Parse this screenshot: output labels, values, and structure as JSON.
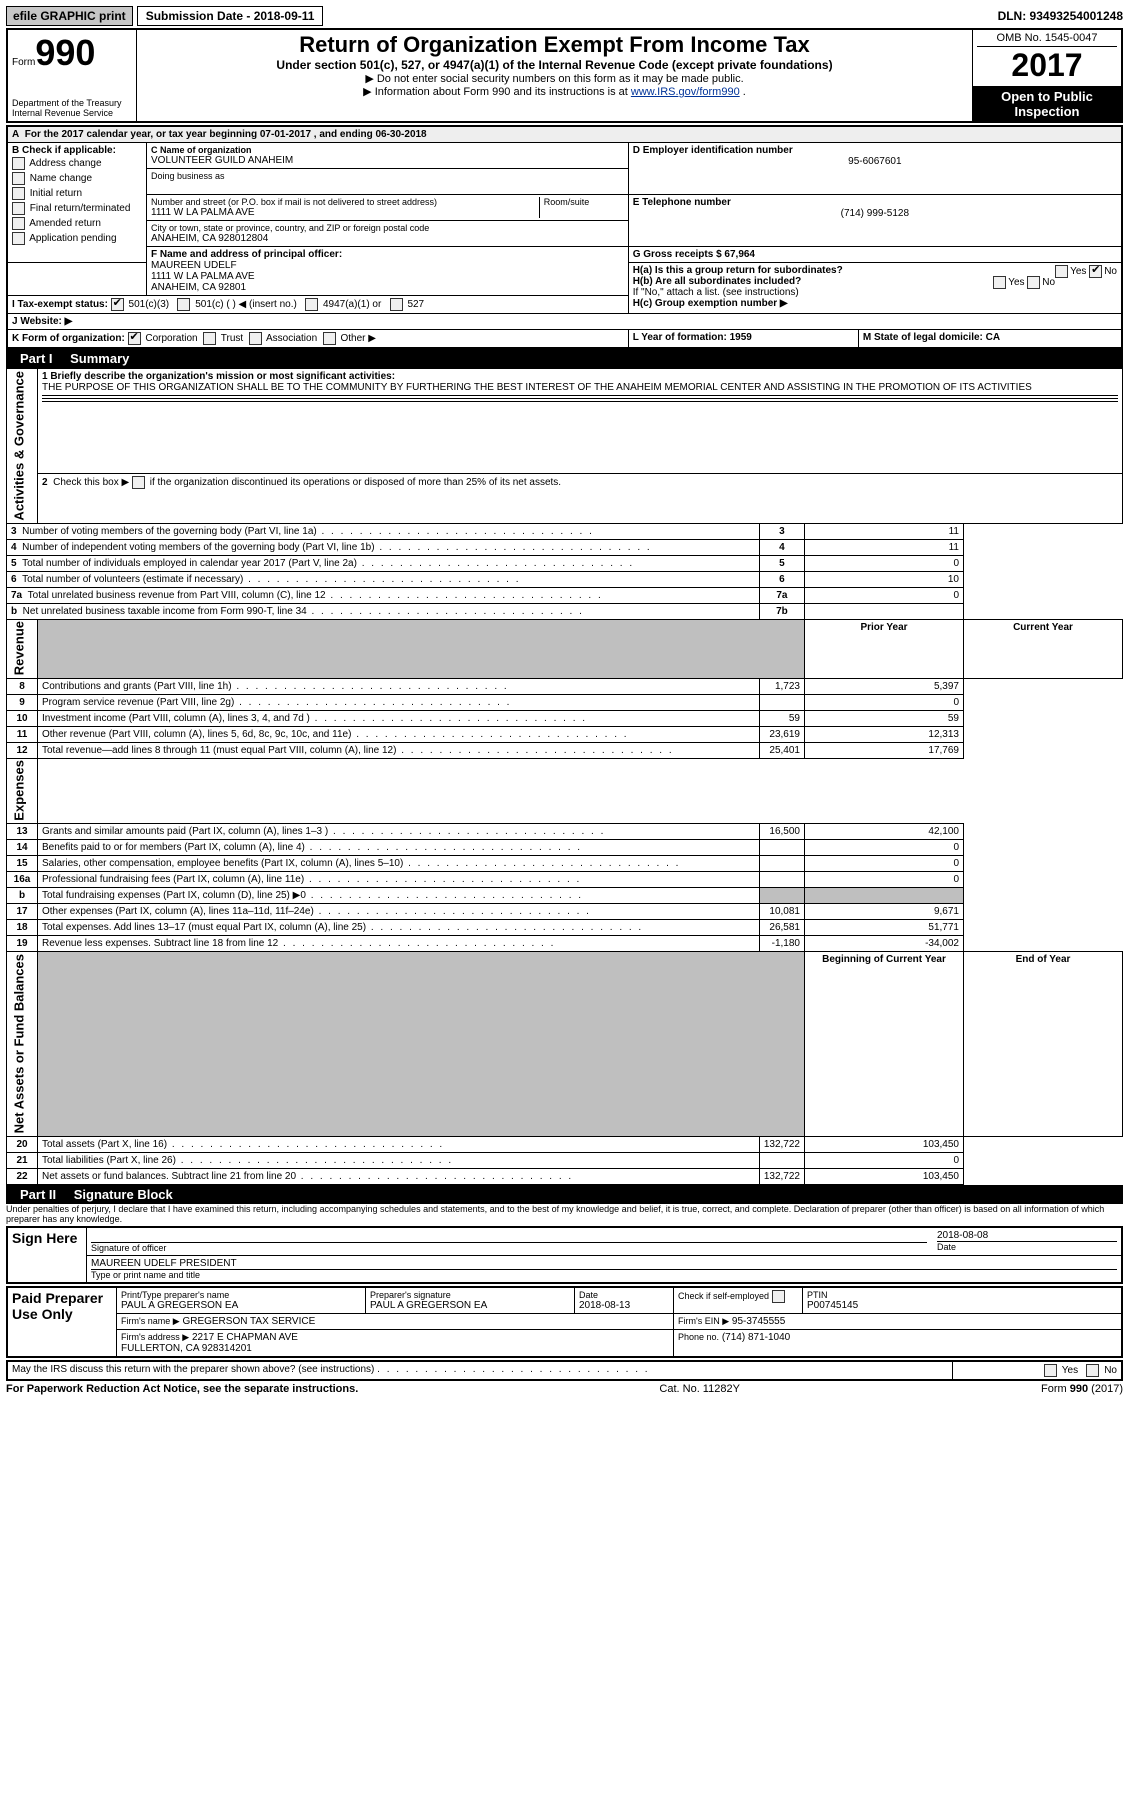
{
  "topbar": {
    "efile_label": "efile GRAPHIC print",
    "submission_label": "Submission Date - 2018-09-11",
    "dln_label": "DLN: 93493254001248"
  },
  "header": {
    "form_label": "Form",
    "form_number": "990",
    "dept": "Department of the Treasury",
    "irs": "Internal Revenue Service",
    "title": "Return of Organization Exempt From Income Tax",
    "subtitle": "Under section 501(c), 527, or 4947(a)(1) of the Internal Revenue Code (except private foundations)",
    "note1": "▶ Do not enter social security numbers on this form as it may be made public.",
    "note2_pre": "▶ Information about Form 990 and its instructions is at ",
    "note2_link": "www.IRS.gov/form990",
    "note2_post": ".",
    "omb": "OMB No. 1545-0047",
    "year": "2017",
    "open_to_public": "Open to Public Inspection"
  },
  "sectionA": {
    "line": "For the 2017 calendar year, or tax year beginning 07-01-2017   , and ending 06-30-2018"
  },
  "sectionB": {
    "label": "B Check if applicable:",
    "items": [
      "Address change",
      "Name change",
      "Initial return",
      "Final return/terminated",
      "Amended return",
      "Application pending"
    ]
  },
  "sectionC": {
    "name_label": "C Name of organization",
    "org_name": "VOLUNTEER GUILD ANAHEIM",
    "dba_label": "Doing business as",
    "addr_label": "Number and street (or P.O. box if mail is not delivered to street address)",
    "room_label": "Room/suite",
    "address": "1111 W LA PALMA AVE",
    "city_label": "City or town, state or province, country, and ZIP or foreign postal code",
    "city": "ANAHEIM, CA  928012804"
  },
  "sectionD": {
    "label": "D Employer identification number",
    "value": "95-6067601"
  },
  "sectionE": {
    "label": "E Telephone number",
    "value": "(714) 999-5128"
  },
  "sectionG": {
    "label": "G Gross receipts $ 67,964"
  },
  "sectionF": {
    "label": "F Name and address of principal officer:",
    "name": "MAUREEN UDELF",
    "addr1": "1111 W LA PALMA AVE",
    "addr2": "ANAHEIM, CA  92801"
  },
  "sectionH": {
    "ha": "H(a)  Is this a group return for subordinates?",
    "hb": "H(b)  Are all subordinates included?",
    "hb_note": "If \"No,\" attach a list. (see instructions)",
    "hc": "H(c)  Group exemption number ▶",
    "yes": "Yes",
    "no": "No"
  },
  "sectionI": {
    "label": "I   Tax-exempt status:",
    "opts": [
      "501(c)(3)",
      "501(c) (   ) ◀ (insert no.)",
      "4947(a)(1) or",
      "527"
    ]
  },
  "sectionJ": {
    "label": "J   Website: ▶"
  },
  "sectionK": {
    "label": "K Form of organization:",
    "opts": [
      "Corporation",
      "Trust",
      "Association",
      "Other ▶"
    ]
  },
  "sectionL": {
    "label": "L Year of formation: 1959"
  },
  "sectionM": {
    "label": "M State of legal domicile: CA"
  },
  "part1": {
    "bar": "Part I",
    "title": "Summary"
  },
  "mission": {
    "label": "1 Briefly describe the organization's mission or most significant activities:",
    "text": "THE PURPOSE OF THIS ORGANIZATION SHALL BE TO THE COMMUNITY BY FURTHERING THE BEST INTEREST OF THE ANAHEIM MEMORIAL CENTER AND ASSISTING IN THE PROMOTION OF ITS ACTIVITIES"
  },
  "line2": "2   Check this box ▶  if the organization discontinued its operations or disposed of more than 25% of its net assets.",
  "gov_rows": [
    {
      "n": "3",
      "t": "Number of voting members of the governing body (Part VI, line 1a)",
      "box": "3",
      "v": "11"
    },
    {
      "n": "4",
      "t": "Number of independent voting members of the governing body (Part VI, line 1b)",
      "box": "4",
      "v": "11"
    },
    {
      "n": "5",
      "t": "Total number of individuals employed in calendar year 2017 (Part V, line 2a)",
      "box": "5",
      "v": "0"
    },
    {
      "n": "6",
      "t": "Total number of volunteers (estimate if necessary)",
      "box": "6",
      "v": "10"
    },
    {
      "n": "7a",
      "t": "Total unrelated business revenue from Part VIII, column (C), line 12",
      "box": "7a",
      "v": "0"
    },
    {
      "n": "b",
      "t": "Net unrelated business taxable income from Form 990-T, line 34",
      "box": "7b",
      "v": ""
    }
  ],
  "col_headers": {
    "prior": "Prior Year",
    "current": "Current Year"
  },
  "revenue_rows": [
    {
      "n": "8",
      "t": "Contributions and grants (Part VIII, line 1h)",
      "p": "1,723",
      "c": "5,397"
    },
    {
      "n": "9",
      "t": "Program service revenue (Part VIII, line 2g)",
      "p": "",
      "c": "0"
    },
    {
      "n": "10",
      "t": "Investment income (Part VIII, column (A), lines 3, 4, and 7d )",
      "p": "59",
      "c": "59"
    },
    {
      "n": "11",
      "t": "Other revenue (Part VIII, column (A), lines 5, 6d, 8c, 9c, 10c, and 11e)",
      "p": "23,619",
      "c": "12,313"
    },
    {
      "n": "12",
      "t": "Total revenue—add lines 8 through 11 (must equal Part VIII, column (A), line 12)",
      "p": "25,401",
      "c": "17,769"
    }
  ],
  "expense_rows": [
    {
      "n": "13",
      "t": "Grants and similar amounts paid (Part IX, column (A), lines 1–3 )",
      "p": "16,500",
      "c": "42,100"
    },
    {
      "n": "14",
      "t": "Benefits paid to or for members (Part IX, column (A), line 4)",
      "p": "",
      "c": "0"
    },
    {
      "n": "15",
      "t": "Salaries, other compensation, employee benefits (Part IX, column (A), lines 5–10)",
      "p": "",
      "c": "0"
    },
    {
      "n": "16a",
      "t": "Professional fundraising fees (Part IX, column (A), line 11e)",
      "p": "",
      "c": "0"
    },
    {
      "n": "b",
      "t": "Total fundraising expenses (Part IX, column (D), line 25) ▶0",
      "p": "grey",
      "c": "grey"
    },
    {
      "n": "17",
      "t": "Other expenses (Part IX, column (A), lines 11a–11d, 11f–24e)",
      "p": "10,081",
      "c": "9,671"
    },
    {
      "n": "18",
      "t": "Total expenses. Add lines 13–17 (must equal Part IX, column (A), line 25)",
      "p": "26,581",
      "c": "51,771"
    },
    {
      "n": "19",
      "t": "Revenue less expenses. Subtract line 18 from line 12",
      "p": "-1,180",
      "c": "-34,002"
    }
  ],
  "net_headers": {
    "begin": "Beginning of Current Year",
    "end": "End of Year"
  },
  "net_rows": [
    {
      "n": "20",
      "t": "Total assets (Part X, line 16)",
      "p": "132,722",
      "c": "103,450"
    },
    {
      "n": "21",
      "t": "Total liabilities (Part X, line 26)",
      "p": "",
      "c": "0"
    },
    {
      "n": "22",
      "t": "Net assets or fund balances. Subtract line 21 from line 20",
      "p": "132,722",
      "c": "103,450"
    }
  ],
  "side_labels": {
    "gov": "Activities & Governance",
    "rev": "Revenue",
    "exp": "Expenses",
    "net": "Net Assets or Fund Balances"
  },
  "part2": {
    "bar": "Part II",
    "title": "Signature Block"
  },
  "sig_decl": "Under penalties of perjury, I declare that I have examined this return, including accompanying schedules and statements, and to the best of my knowledge and belief, it is true, correct, and complete. Declaration of preparer (other than officer) is based on all information of which preparer has any knowledge.",
  "sign": {
    "here": "Sign Here",
    "sig_label": "Signature of officer",
    "date_label": "Date",
    "date": "2018-08-08",
    "name": "MAUREEN UDELF PRESIDENT",
    "name_label": "Type or print name and title"
  },
  "preparer": {
    "block": "Paid Preparer Use Only",
    "name_label": "Print/Type preparer's name",
    "name": "PAUL A GREGERSON EA",
    "sig_label": "Preparer's signature",
    "sig": "PAUL A GREGERSON EA",
    "date_label": "Date",
    "date": "2018-08-13",
    "check_label": "Check  if self-employed",
    "ptin_label": "PTIN",
    "ptin": "P00745145",
    "firm_name_label": "Firm's name      ▶",
    "firm_name": "GREGERSON TAX SERVICE",
    "firm_ein_label": "Firm's EIN ▶",
    "firm_ein": "95-3745555",
    "firm_addr_label": "Firm's address ▶",
    "firm_addr": "2217 E CHAPMAN AVE",
    "firm_city": "FULLERTON, CA  928314201",
    "phone_label": "Phone no.",
    "phone": "(714) 871-1040"
  },
  "discuss": "May the IRS discuss this return with the preparer shown above? (see instructions)",
  "footer": {
    "left": "For Paperwork Reduction Act Notice, see the separate instructions.",
    "mid": "Cat. No. 11282Y",
    "right": "Form 990 (2017)"
  }
}
